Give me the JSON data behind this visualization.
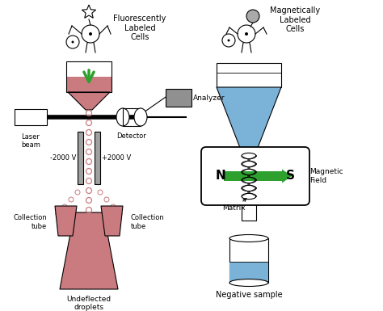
{
  "bg_color": "#ffffff",
  "left_label": "Fluorescently\nLabeled\nCells",
  "right_label": "Magnetically\nLabeled\nCells",
  "laser_label": "Laser\nbeam",
  "detector_label": "Detector",
  "analyzer_label": "Analyzer",
  "neg2000_label": "-2000 V",
  "pos2000_label": "+2000 V",
  "coll_left_label": "Collection\ntube",
  "coll_right_label": "Collection\ntube",
  "undefl_label": "Undeflected\ndroplets",
  "matrix_label": "Matrix",
  "neg_sample_label": "Negative sample",
  "magfield_label": "Magnetic\nField",
  "north_label": "N",
  "south_label": "S",
  "pink_color": "#c97b80",
  "green_color": "#2ea02e",
  "gray_color": "#909090",
  "dark_gray": "#666666",
  "blue_color": "#7ab2d8",
  "lw": 0.8,
  "figw": 4.74,
  "figh": 3.85,
  "dpi": 100
}
